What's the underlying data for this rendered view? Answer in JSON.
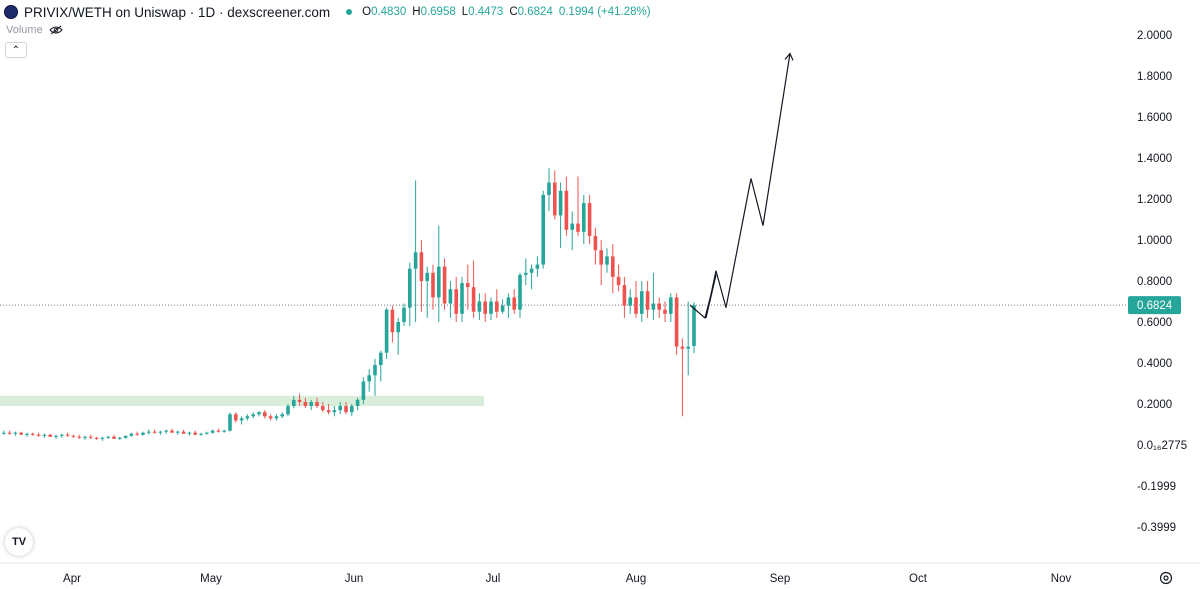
{
  "header": {
    "title": "PRIVIX/WETH on Uniswap · 1D · dexscreener.com",
    "ohlc": [
      {
        "key": "O",
        "value": "0.4830"
      },
      {
        "key": "H",
        "value": "0.6958"
      },
      {
        "key": "L",
        "value": "0.4473"
      },
      {
        "key": "C",
        "value": "0.6824"
      },
      {
        "key": "",
        "value": "0.1994 (+41.28%)"
      }
    ]
  },
  "volume_label": "Volume",
  "tv_logo_text": "TV",
  "colors": {
    "up": "#26a69a",
    "down": "#ef5350",
    "zone": "#d8eeda",
    "price_tag": "#26a69a"
  },
  "chart_data": {
    "type": "candlestick",
    "y_tick_labels": [
      "2.0000",
      "1.8000",
      "1.6000",
      "1.4000",
      "1.2000",
      "1.0000",
      "0.8000",
      "0.6000",
      "0.4000",
      "0.2000",
      "0.0₁₆2775",
      "-0.1999",
      "-0.3999"
    ],
    "y_tick_values": [
      2.0,
      1.8,
      1.6,
      1.4,
      1.2,
      1.0,
      0.8,
      0.6,
      0.4,
      0.2,
      0.0,
      -0.2,
      -0.4
    ],
    "x_tick_labels": [
      "Apr",
      "May",
      "Jun",
      "Jul",
      "Aug",
      "Sep",
      "Oct",
      "Nov"
    ],
    "ylim": [
      -0.45,
      2.1
    ],
    "last_price": "0.6824",
    "last_price_value": 0.6824,
    "support_zone": {
      "low": 0.19,
      "high": 0.24,
      "x_start": "Mar",
      "x_end": "Jul"
    },
    "projection_path": [
      0.6824,
      0.62,
      0.83,
      0.62,
      0.85,
      0.67,
      1.3,
      1.07,
      1.91
    ],
    "candles": [
      [
        0.06,
        0.07,
        0.05,
        0.06
      ],
      [
        0.06,
        0.07,
        0.05,
        0.055
      ],
      [
        0.055,
        0.065,
        0.045,
        0.06
      ],
      [
        0.06,
        0.065,
        0.05,
        0.05
      ],
      [
        0.05,
        0.06,
        0.04,
        0.055
      ],
      [
        0.055,
        0.06,
        0.045,
        0.05
      ],
      [
        0.05,
        0.06,
        0.04,
        0.045
      ],
      [
        0.045,
        0.055,
        0.035,
        0.05
      ],
      [
        0.05,
        0.055,
        0.04,
        0.04
      ],
      [
        0.04,
        0.05,
        0.03,
        0.045
      ],
      [
        0.045,
        0.055,
        0.035,
        0.05
      ],
      [
        0.05,
        0.06,
        0.04,
        0.045
      ],
      [
        0.045,
        0.05,
        0.035,
        0.04
      ],
      [
        0.04,
        0.05,
        0.03,
        0.035
      ],
      [
        0.035,
        0.045,
        0.025,
        0.04
      ],
      [
        0.04,
        0.05,
        0.03,
        0.035
      ],
      [
        0.035,
        0.04,
        0.025,
        0.03
      ],
      [
        0.03,
        0.04,
        0.02,
        0.035
      ],
      [
        0.035,
        0.045,
        0.03,
        0.04
      ],
      [
        0.04,
        0.05,
        0.03,
        0.03
      ],
      [
        0.03,
        0.04,
        0.025,
        0.035
      ],
      [
        0.035,
        0.045,
        0.03,
        0.045
      ],
      [
        0.045,
        0.06,
        0.04,
        0.055
      ],
      [
        0.055,
        0.065,
        0.045,
        0.05
      ],
      [
        0.05,
        0.065,
        0.045,
        0.06
      ],
      [
        0.06,
        0.075,
        0.05,
        0.065
      ],
      [
        0.065,
        0.075,
        0.055,
        0.06
      ],
      [
        0.06,
        0.07,
        0.05,
        0.065
      ],
      [
        0.065,
        0.075,
        0.055,
        0.07
      ],
      [
        0.07,
        0.08,
        0.06,
        0.06
      ],
      [
        0.06,
        0.07,
        0.05,
        0.065
      ],
      [
        0.065,
        0.075,
        0.055,
        0.055
      ],
      [
        0.055,
        0.065,
        0.045,
        0.06
      ],
      [
        0.06,
        0.07,
        0.05,
        0.05
      ],
      [
        0.05,
        0.06,
        0.045,
        0.055
      ],
      [
        0.055,
        0.065,
        0.05,
        0.06
      ],
      [
        0.06,
        0.075,
        0.055,
        0.07
      ],
      [
        0.07,
        0.08,
        0.06,
        0.065
      ],
      [
        0.065,
        0.075,
        0.06,
        0.07
      ],
      [
        0.07,
        0.16,
        0.065,
        0.15
      ],
      [
        0.15,
        0.16,
        0.11,
        0.12
      ],
      [
        0.12,
        0.14,
        0.1,
        0.13
      ],
      [
        0.13,
        0.15,
        0.12,
        0.14
      ],
      [
        0.14,
        0.16,
        0.13,
        0.15
      ],
      [
        0.15,
        0.165,
        0.14,
        0.16
      ],
      [
        0.16,
        0.17,
        0.13,
        0.14
      ],
      [
        0.14,
        0.15,
        0.12,
        0.13
      ],
      [
        0.13,
        0.15,
        0.12,
        0.14
      ],
      [
        0.14,
        0.16,
        0.13,
        0.15
      ],
      [
        0.15,
        0.2,
        0.14,
        0.19
      ],
      [
        0.19,
        0.24,
        0.18,
        0.22
      ],
      [
        0.22,
        0.25,
        0.19,
        0.21
      ],
      [
        0.21,
        0.23,
        0.18,
        0.19
      ],
      [
        0.19,
        0.22,
        0.17,
        0.21
      ],
      [
        0.21,
        0.23,
        0.18,
        0.19
      ],
      [
        0.19,
        0.21,
        0.16,
        0.17
      ],
      [
        0.17,
        0.2,
        0.15,
        0.16
      ],
      [
        0.16,
        0.19,
        0.14,
        0.17
      ],
      [
        0.17,
        0.21,
        0.15,
        0.19
      ],
      [
        0.19,
        0.21,
        0.15,
        0.16
      ],
      [
        0.16,
        0.2,
        0.14,
        0.19
      ],
      [
        0.19,
        0.23,
        0.17,
        0.22
      ],
      [
        0.22,
        0.33,
        0.2,
        0.31
      ],
      [
        0.31,
        0.37,
        0.26,
        0.34
      ],
      [
        0.34,
        0.42,
        0.24,
        0.39
      ],
      [
        0.39,
        0.46,
        0.31,
        0.45
      ],
      [
        0.45,
        0.67,
        0.42,
        0.66
      ],
      [
        0.66,
        0.68,
        0.5,
        0.55
      ],
      [
        0.55,
        0.62,
        0.44,
        0.6
      ],
      [
        0.6,
        0.69,
        0.58,
        0.67
      ],
      [
        0.67,
        0.89,
        0.58,
        0.86
      ],
      [
        0.86,
        1.29,
        0.6,
        0.94
      ],
      [
        0.94,
        1.0,
        0.65,
        0.8
      ],
      [
        0.8,
        0.87,
        0.62,
        0.84
      ],
      [
        0.84,
        0.88,
        0.66,
        0.72
      ],
      [
        0.72,
        1.07,
        0.6,
        0.87
      ],
      [
        0.87,
        0.91,
        0.66,
        0.69
      ],
      [
        0.69,
        0.8,
        0.62,
        0.76
      ],
      [
        0.76,
        0.82,
        0.6,
        0.64
      ],
      [
        0.64,
        0.82,
        0.6,
        0.79
      ],
      [
        0.79,
        0.88,
        0.66,
        0.77
      ],
      [
        0.77,
        0.9,
        0.62,
        0.65
      ],
      [
        0.65,
        0.74,
        0.61,
        0.7
      ],
      [
        0.7,
        0.74,
        0.6,
        0.64
      ],
      [
        0.64,
        0.72,
        0.61,
        0.7
      ],
      [
        0.7,
        0.76,
        0.62,
        0.65
      ],
      [
        0.65,
        0.71,
        0.64,
        0.68
      ],
      [
        0.68,
        0.74,
        0.62,
        0.72
      ],
      [
        0.72,
        0.76,
        0.64,
        0.66
      ],
      [
        0.66,
        0.84,
        0.62,
        0.83
      ],
      [
        0.83,
        0.91,
        0.78,
        0.84
      ],
      [
        0.84,
        0.88,
        0.76,
        0.86
      ],
      [
        0.86,
        0.92,
        0.82,
        0.88
      ],
      [
        0.88,
        1.24,
        0.86,
        1.22
      ],
      [
        1.22,
        1.35,
        1.14,
        1.28
      ],
      [
        1.28,
        1.34,
        1.1,
        1.12
      ],
      [
        1.12,
        1.28,
        0.96,
        1.24
      ],
      [
        1.24,
        1.31,
        1.02,
        1.05
      ],
      [
        1.05,
        1.14,
        0.95,
        1.08
      ],
      [
        1.08,
        1.31,
        1.02,
        1.04
      ],
      [
        1.04,
        1.22,
        0.98,
        1.18
      ],
      [
        1.18,
        1.22,
        0.98,
        1.02
      ],
      [
        1.02,
        1.06,
        0.88,
        0.95
      ],
      [
        0.95,
        1.0,
        0.78,
        0.88
      ],
      [
        0.88,
        0.96,
        0.84,
        0.92
      ],
      [
        0.92,
        0.98,
        0.74,
        0.82
      ],
      [
        0.82,
        0.88,
        0.75,
        0.78
      ],
      [
        0.78,
        0.82,
        0.62,
        0.68
      ],
      [
        0.68,
        0.76,
        0.64,
        0.72
      ],
      [
        0.72,
        0.8,
        0.62,
        0.64
      ],
      [
        0.64,
        0.8,
        0.6,
        0.75
      ],
      [
        0.75,
        0.8,
        0.62,
        0.66
      ],
      [
        0.66,
        0.84,
        0.61,
        0.69
      ],
      [
        0.69,
        0.72,
        0.62,
        0.66
      ],
      [
        0.66,
        0.7,
        0.6,
        0.64
      ],
      [
        0.64,
        0.74,
        0.6,
        0.72
      ],
      [
        0.72,
        0.74,
        0.44,
        0.48
      ],
      [
        0.48,
        0.52,
        0.14,
        0.47
      ],
      [
        0.47,
        0.7,
        0.34,
        0.48
      ],
      [
        0.483,
        0.6958,
        0.4473,
        0.6824
      ]
    ]
  }
}
